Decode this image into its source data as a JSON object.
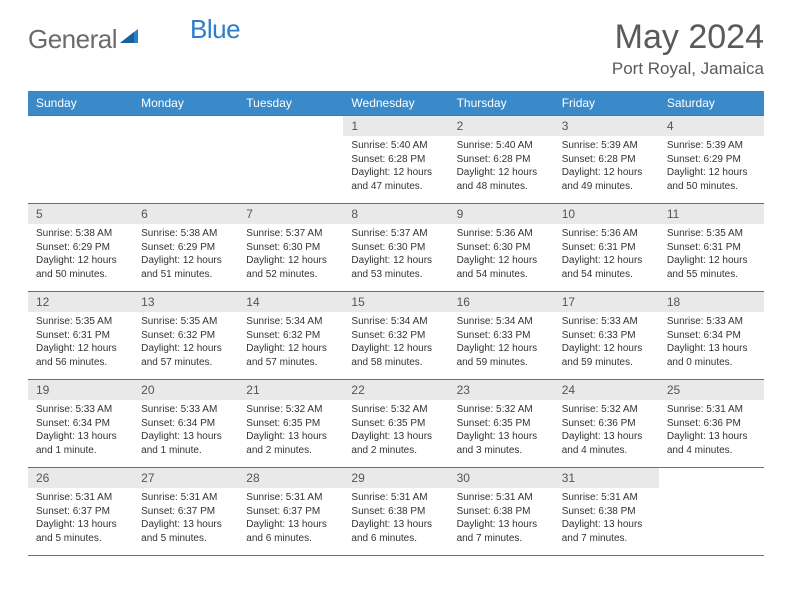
{
  "brand": {
    "name_a": "General",
    "name_b": "Blue"
  },
  "title": "May 2024",
  "location": "Port Royal, Jamaica",
  "colors": {
    "header_bg": "#3a89c9",
    "border": "#2a7fc9",
    "daynum_bg": "#e9e9e9",
    "text": "#333333",
    "muted": "#5a5a5a"
  },
  "weekdays": [
    "Sunday",
    "Monday",
    "Tuesday",
    "Wednesday",
    "Thursday",
    "Friday",
    "Saturday"
  ],
  "weeks": [
    [
      null,
      null,
      null,
      {
        "n": "1",
        "sr": "5:40 AM",
        "ss": "6:28 PM",
        "dl": "12 hours and 47 minutes."
      },
      {
        "n": "2",
        "sr": "5:40 AM",
        "ss": "6:28 PM",
        "dl": "12 hours and 48 minutes."
      },
      {
        "n": "3",
        "sr": "5:39 AM",
        "ss": "6:28 PM",
        "dl": "12 hours and 49 minutes."
      },
      {
        "n": "4",
        "sr": "5:39 AM",
        "ss": "6:29 PM",
        "dl": "12 hours and 50 minutes."
      }
    ],
    [
      {
        "n": "5",
        "sr": "5:38 AM",
        "ss": "6:29 PM",
        "dl": "12 hours and 50 minutes."
      },
      {
        "n": "6",
        "sr": "5:38 AM",
        "ss": "6:29 PM",
        "dl": "12 hours and 51 minutes."
      },
      {
        "n": "7",
        "sr": "5:37 AM",
        "ss": "6:30 PM",
        "dl": "12 hours and 52 minutes."
      },
      {
        "n": "8",
        "sr": "5:37 AM",
        "ss": "6:30 PM",
        "dl": "12 hours and 53 minutes."
      },
      {
        "n": "9",
        "sr": "5:36 AM",
        "ss": "6:30 PM",
        "dl": "12 hours and 54 minutes."
      },
      {
        "n": "10",
        "sr": "5:36 AM",
        "ss": "6:31 PM",
        "dl": "12 hours and 54 minutes."
      },
      {
        "n": "11",
        "sr": "5:35 AM",
        "ss": "6:31 PM",
        "dl": "12 hours and 55 minutes."
      }
    ],
    [
      {
        "n": "12",
        "sr": "5:35 AM",
        "ss": "6:31 PM",
        "dl": "12 hours and 56 minutes."
      },
      {
        "n": "13",
        "sr": "5:35 AM",
        "ss": "6:32 PM",
        "dl": "12 hours and 57 minutes."
      },
      {
        "n": "14",
        "sr": "5:34 AM",
        "ss": "6:32 PM",
        "dl": "12 hours and 57 minutes."
      },
      {
        "n": "15",
        "sr": "5:34 AM",
        "ss": "6:32 PM",
        "dl": "12 hours and 58 minutes."
      },
      {
        "n": "16",
        "sr": "5:34 AM",
        "ss": "6:33 PM",
        "dl": "12 hours and 59 minutes."
      },
      {
        "n": "17",
        "sr": "5:33 AM",
        "ss": "6:33 PM",
        "dl": "12 hours and 59 minutes."
      },
      {
        "n": "18",
        "sr": "5:33 AM",
        "ss": "6:34 PM",
        "dl": "13 hours and 0 minutes."
      }
    ],
    [
      {
        "n": "19",
        "sr": "5:33 AM",
        "ss": "6:34 PM",
        "dl": "13 hours and 1 minute."
      },
      {
        "n": "20",
        "sr": "5:33 AM",
        "ss": "6:34 PM",
        "dl": "13 hours and 1 minute."
      },
      {
        "n": "21",
        "sr": "5:32 AM",
        "ss": "6:35 PM",
        "dl": "13 hours and 2 minutes."
      },
      {
        "n": "22",
        "sr": "5:32 AM",
        "ss": "6:35 PM",
        "dl": "13 hours and 2 minutes."
      },
      {
        "n": "23",
        "sr": "5:32 AM",
        "ss": "6:35 PM",
        "dl": "13 hours and 3 minutes."
      },
      {
        "n": "24",
        "sr": "5:32 AM",
        "ss": "6:36 PM",
        "dl": "13 hours and 4 minutes."
      },
      {
        "n": "25",
        "sr": "5:31 AM",
        "ss": "6:36 PM",
        "dl": "13 hours and 4 minutes."
      }
    ],
    [
      {
        "n": "26",
        "sr": "5:31 AM",
        "ss": "6:37 PM",
        "dl": "13 hours and 5 minutes."
      },
      {
        "n": "27",
        "sr": "5:31 AM",
        "ss": "6:37 PM",
        "dl": "13 hours and 5 minutes."
      },
      {
        "n": "28",
        "sr": "5:31 AM",
        "ss": "6:37 PM",
        "dl": "13 hours and 6 minutes."
      },
      {
        "n": "29",
        "sr": "5:31 AM",
        "ss": "6:38 PM",
        "dl": "13 hours and 6 minutes."
      },
      {
        "n": "30",
        "sr": "5:31 AM",
        "ss": "6:38 PM",
        "dl": "13 hours and 7 minutes."
      },
      {
        "n": "31",
        "sr": "5:31 AM",
        "ss": "6:38 PM",
        "dl": "13 hours and 7 minutes."
      },
      null
    ]
  ],
  "labels": {
    "sunrise": "Sunrise:",
    "sunset": "Sunset:",
    "daylight": "Daylight:"
  }
}
